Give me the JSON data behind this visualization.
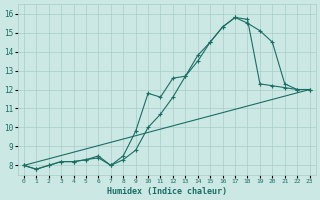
{
  "xlabel": "Humidex (Indice chaleur)",
  "bg_color": "#cbe8e4",
  "grid_color": "#a8ceca",
  "line_color": "#1a6e64",
  "xlim": [
    -0.5,
    23.5
  ],
  "ylim": [
    7.5,
    16.5
  ],
  "xticks": [
    0,
    1,
    2,
    3,
    4,
    5,
    6,
    7,
    8,
    9,
    10,
    11,
    12,
    13,
    14,
    15,
    16,
    17,
    18,
    19,
    20,
    21,
    22,
    23
  ],
  "yticks": [
    8,
    9,
    10,
    11,
    12,
    13,
    14,
    15,
    16
  ],
  "line1_x": [
    0,
    1,
    2,
    3,
    4,
    5,
    6,
    7,
    8,
    9,
    10,
    11,
    12,
    13,
    14,
    15,
    16,
    17,
    18,
    19,
    20,
    21,
    22,
    23
  ],
  "line1_y": [
    8.0,
    7.8,
    8.0,
    8.2,
    8.2,
    8.3,
    8.4,
    8.0,
    8.3,
    8.8,
    10.0,
    10.7,
    11.6,
    12.7,
    13.5,
    14.5,
    15.3,
    15.8,
    15.7,
    12.3,
    12.2,
    12.1,
    12.0,
    12.0
  ],
  "line2_x": [
    0,
    1,
    2,
    3,
    4,
    5,
    6,
    7,
    8,
    9,
    10,
    11,
    12,
    13,
    14,
    15,
    16,
    17,
    18,
    19,
    20,
    21,
    22,
    23
  ],
  "line2_y": [
    8.0,
    7.8,
    8.0,
    8.2,
    8.2,
    8.3,
    8.5,
    8.0,
    8.5,
    9.8,
    11.8,
    11.6,
    12.6,
    12.7,
    13.8,
    14.5,
    15.3,
    15.8,
    15.5,
    15.1,
    14.5,
    12.3,
    12.0,
    12.0
  ],
  "line3_x": [
    0,
    23
  ],
  "line3_y": [
    8.0,
    12.0
  ]
}
